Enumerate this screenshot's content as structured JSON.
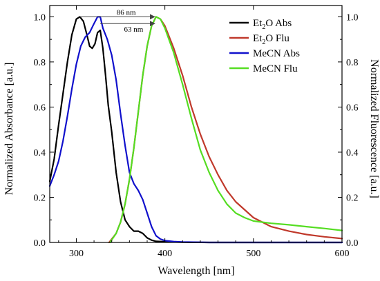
{
  "chart_data": {
    "type": "line",
    "xlabel": "Wavelength [nm]",
    "ylabel_left": "Normalized Absorbance [a.u.]",
    "ylabel_right": "Normalized Fluorescence [a.u.]",
    "xlim": [
      270,
      600
    ],
    "ylim_left": [
      0,
      1.05
    ],
    "ylim_right": [
      0,
      1.05
    ],
    "x_ticks": [
      300,
      400,
      500,
      600
    ],
    "y_ticks_left": [
      0.0,
      0.2,
      0.4,
      0.6,
      0.8,
      1.0
    ],
    "y_ticks_right": [
      0.0,
      0.2,
      0.4,
      0.6,
      0.8,
      1.0
    ],
    "legend": {
      "position": "top-right"
    },
    "annotations": [
      {
        "text": "86 nm",
        "from_x": 304,
        "to_x": 390,
        "y": 1.0
      },
      {
        "text": "63 nm",
        "from_x": 327,
        "to_x": 390,
        "y": 0.97
      }
    ],
    "series": [
      {
        "name": "Et2O Abs",
        "name_main": "Et",
        "name_sub": "2",
        "name_rest": "O Abs",
        "color": "#000000",
        "x": [
          270,
          275,
          280,
          285,
          290,
          295,
          300,
          304,
          308,
          312,
          315,
          318,
          321,
          324,
          327,
          330,
          333,
          336,
          340,
          345,
          350,
          355,
          360,
          365,
          370,
          375,
          380,
          385,
          390,
          400,
          420,
          450,
          500,
          600
        ],
        "y": [
          0.27,
          0.37,
          0.52,
          0.66,
          0.8,
          0.92,
          0.99,
          1.0,
          0.98,
          0.92,
          0.87,
          0.86,
          0.88,
          0.93,
          0.94,
          0.86,
          0.74,
          0.61,
          0.49,
          0.31,
          0.18,
          0.1,
          0.07,
          0.05,
          0.05,
          0.04,
          0.02,
          0.01,
          0.005,
          0.003,
          0.001,
          0.0,
          0.0,
          0.0
        ]
      },
      {
        "name": "Et2O Flu",
        "name_main": "Et",
        "name_sub": "2",
        "name_rest": "O Flu",
        "color": "#c0392b",
        "x": [
          337,
          345,
          350,
          355,
          360,
          365,
          370,
          375,
          380,
          385,
          390,
          395,
          400,
          410,
          420,
          430,
          440,
          450,
          460,
          470,
          480,
          500,
          520,
          540,
          560,
          580,
          600
        ],
        "y": [
          0.0,
          0.04,
          0.09,
          0.17,
          0.28,
          0.42,
          0.58,
          0.74,
          0.87,
          0.96,
          1.0,
          0.99,
          0.96,
          0.86,
          0.74,
          0.6,
          0.48,
          0.38,
          0.3,
          0.23,
          0.18,
          0.11,
          0.07,
          0.05,
          0.035,
          0.025,
          0.017
        ]
      },
      {
        "name": "MeCN Abs",
        "name_main": "MeCN Abs",
        "name_sub": "",
        "name_rest": "",
        "color": "#1010cc",
        "x": [
          270,
          275,
          280,
          285,
          290,
          295,
          300,
          305,
          310,
          315,
          320,
          324,
          327,
          330,
          335,
          340,
          345,
          350,
          355,
          360,
          365,
          370,
          375,
          380,
          385,
          390,
          395,
          400,
          410,
          420,
          450,
          500,
          600
        ],
        "y": [
          0.25,
          0.3,
          0.36,
          0.45,
          0.56,
          0.68,
          0.79,
          0.87,
          0.91,
          0.93,
          0.97,
          1.0,
          1.0,
          0.95,
          0.9,
          0.83,
          0.72,
          0.57,
          0.43,
          0.31,
          0.26,
          0.23,
          0.19,
          0.13,
          0.07,
          0.03,
          0.015,
          0.008,
          0.004,
          0.002,
          0.0,
          0.0,
          0.0
        ]
      },
      {
        "name": "MeCN Flu",
        "name_main": "MeCN Flu",
        "name_sub": "",
        "name_rest": "",
        "color": "#55dd22",
        "x": [
          338,
          345,
          350,
          355,
          360,
          365,
          370,
          375,
          380,
          385,
          390,
          395,
          400,
          410,
          420,
          430,
          440,
          450,
          460,
          470,
          480,
          490,
          500,
          520,
          540,
          560,
          580,
          600
        ],
        "y": [
          0.0,
          0.04,
          0.09,
          0.17,
          0.28,
          0.42,
          0.58,
          0.74,
          0.87,
          0.96,
          1.0,
          0.99,
          0.95,
          0.84,
          0.7,
          0.55,
          0.41,
          0.31,
          0.23,
          0.17,
          0.13,
          0.11,
          0.095,
          0.085,
          0.078,
          0.07,
          0.062,
          0.053
        ]
      }
    ]
  }
}
